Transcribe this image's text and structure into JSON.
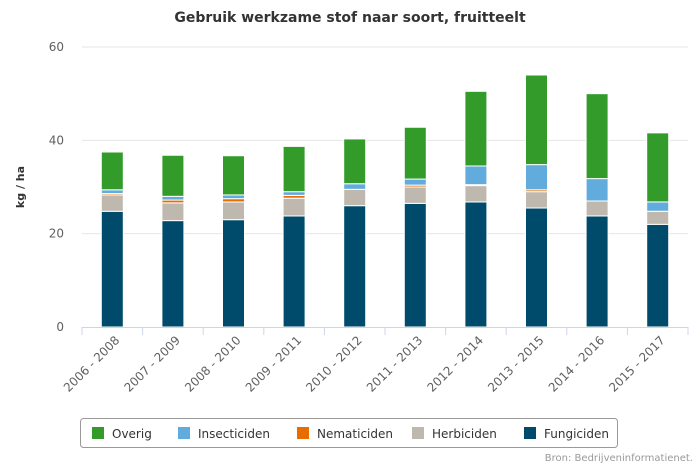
{
  "chart_data": {
    "type": "bar",
    "stacked": true,
    "title": "Gebruik werkzame stof naar soort, fruitteelt",
    "xlabel": "",
    "ylabel": "kg / ha",
    "ylim": [
      0,
      60
    ],
    "yticks": [
      0,
      20,
      40,
      60
    ],
    "grid": true,
    "legend_position": "bottom",
    "categories": [
      "2006 - 2008",
      "2007 - 2009",
      "2008 - 2010",
      "2009 - 2011",
      "2010 - 2012",
      "2011 - 2013",
      "2012 - 2014",
      "2013 - 2015",
      "2014 - 2016",
      "2015 - 2017"
    ],
    "series": [
      {
        "name": "Fungiciden",
        "color": "#004b6b",
        "values": [
          24.8,
          22.8,
          23.0,
          23.8,
          26.0,
          26.5,
          26.8,
          25.5,
          23.8,
          22.0
        ]
      },
      {
        "name": "Herbiciden",
        "color": "#bfb8ae",
        "values": [
          3.5,
          3.8,
          3.8,
          3.8,
          3.5,
          3.5,
          3.5,
          3.5,
          3.2,
          2.8
        ]
      },
      {
        "name": "Nematiciden",
        "color": "#e96c00",
        "values": [
          0.3,
          0.6,
          0.7,
          0.6,
          0.0,
          0.4,
          0.2,
          0.4,
          0.0,
          0.0
        ]
      },
      {
        "name": "Insecticiden",
        "color": "#62abdd",
        "values": [
          0.8,
          0.8,
          0.8,
          0.8,
          1.2,
          1.3,
          4.0,
          5.4,
          4.8,
          2.0
        ]
      },
      {
        "name": "Overig",
        "color": "#339b2a",
        "values": [
          8.1,
          8.8,
          8.4,
          9.7,
          9.6,
          11.1,
          16.0,
          19.2,
          18.2,
          14.8
        ]
      }
    ],
    "legend_order": [
      "Overig",
      "Insecticiden",
      "Nematiciden",
      "Herbiciden",
      "Fungiciden"
    ],
    "credits": "Bron: Bedrijveninformatienet."
  }
}
